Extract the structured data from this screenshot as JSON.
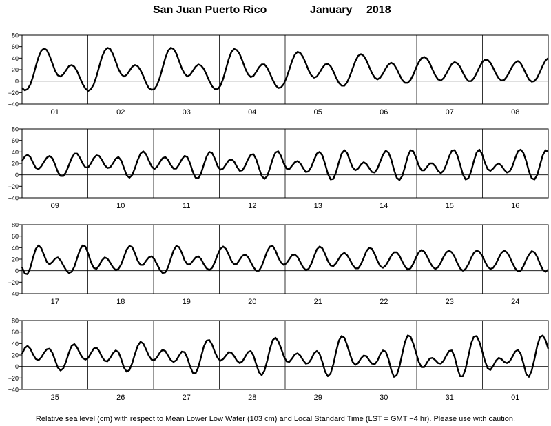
{
  "title": {
    "location": "San Juan Puerto Rico",
    "month": "January",
    "year": "2018"
  },
  "caption": "Relative sea level (cm) with respect to Mean Lower Low Water (103 cm) and Local Standard Time (LST = GMT −4 hr). Please use with caution.",
  "colors": {
    "curve": "#000000",
    "grid": "#000000",
    "background": "#ffffff"
  },
  "chart_data": {
    "type": "line",
    "ylim": [
      -40,
      80
    ],
    "yticks": [
      80,
      60,
      40,
      20,
      0,
      -20,
      -40
    ],
    "ytick_labels": [
      "80",
      "60",
      "40",
      "20",
      "0",
      "−20",
      "−40"
    ],
    "grid": "vertical lines at day boundaries and horizontal zero line",
    "samples_per_day": 24,
    "panels": [
      {
        "day_labels": [
          "01",
          "02",
          "03",
          "04",
          "05",
          "06",
          "07",
          "08"
        ],
        "values": [
          [
            -12,
            -16,
            -14,
            -6,
            8,
            26,
            42,
            53,
            57,
            54,
            44,
            31,
            18,
            10,
            8,
            12,
            19,
            26,
            28,
            25,
            17,
            6,
            -5,
            -13
          ],
          [
            -17,
            -14,
            -6,
            8,
            25,
            42,
            53,
            58,
            56,
            47,
            34,
            21,
            12,
            8,
            11,
            18,
            25,
            28,
            26,
            19,
            9,
            -3,
            -12,
            -15
          ],
          [
            -14,
            -7,
            6,
            23,
            40,
            53,
            58,
            56,
            48,
            35,
            22,
            13,
            8,
            11,
            18,
            25,
            29,
            27,
            21,
            11,
            0,
            -9,
            -14,
            -14
          ],
          [
            -8,
            4,
            21,
            38,
            51,
            56,
            54,
            47,
            35,
            22,
            12,
            7,
            9,
            16,
            24,
            29,
            29,
            23,
            13,
            2,
            -7,
            -12,
            -11,
            -5
          ],
          [
            6,
            20,
            35,
            46,
            51,
            49,
            42,
            31,
            19,
            10,
            6,
            8,
            15,
            23,
            29,
            30,
            26,
            17,
            6,
            -3,
            -8,
            -8,
            -2,
            9
          ],
          [
            22,
            35,
            44,
            47,
            44,
            36,
            25,
            14,
            6,
            3,
            6,
            13,
            22,
            29,
            32,
            29,
            21,
            11,
            2,
            -3,
            -3,
            2,
            11,
            23
          ],
          [
            33,
            40,
            42,
            39,
            31,
            20,
            10,
            3,
            1,
            5,
            13,
            22,
            30,
            33,
            31,
            25,
            15,
            6,
            0,
            0,
            5,
            14,
            24,
            33
          ],
          [
            37,
            37,
            32,
            23,
            13,
            5,
            1,
            2,
            8,
            17,
            26,
            32,
            35,
            31,
            22,
            12,
            3,
            -1,
            0,
            6,
            16,
            27,
            36,
            40
          ]
        ]
      },
      {
        "day_labels": [
          "09",
          "10",
          "11",
          "12",
          "13",
          "14",
          "15",
          "16"
        ],
        "values": [
          [
            24,
            32,
            35,
            31,
            21,
            12,
            10,
            15,
            23,
            30,
            33,
            29,
            18,
            5,
            -2,
            -2,
            5,
            17,
            29,
            37,
            37,
            30,
            20,
            13
          ],
          [
            13,
            20,
            29,
            34,
            33,
            26,
            17,
            12,
            13,
            20,
            28,
            31,
            25,
            12,
            -1,
            -5,
            0,
            12,
            26,
            37,
            41,
            36,
            25,
            15
          ],
          [
            10,
            14,
            22,
            29,
            31,
            26,
            17,
            11,
            11,
            18,
            27,
            33,
            31,
            20,
            5,
            -5,
            -6,
            3,
            18,
            32,
            40,
            38,
            28,
            15
          ],
          [
            9,
            11,
            18,
            25,
            27,
            23,
            14,
            7,
            8,
            16,
            27,
            35,
            36,
            27,
            12,
            -2,
            -7,
            -2,
            12,
            28,
            39,
            41,
            33,
            20
          ],
          [
            11,
            10,
            16,
            22,
            24,
            20,
            12,
            5,
            6,
            14,
            26,
            37,
            40,
            34,
            19,
            2,
            -8,
            -7,
            5,
            22,
            37,
            43,
            38,
            25
          ],
          [
            13,
            8,
            11,
            18,
            22,
            19,
            12,
            5,
            4,
            11,
            23,
            35,
            42,
            39,
            27,
            9,
            -5,
            -9,
            -2,
            14,
            32,
            43,
            41,
            30
          ],
          [
            16,
            8,
            8,
            14,
            20,
            20,
            15,
            7,
            3,
            7,
            18,
            32,
            42,
            43,
            34,
            18,
            1,
            -8,
            -6,
            6,
            24,
            39,
            44,
            36
          ],
          [
            21,
            10,
            7,
            11,
            17,
            20,
            16,
            9,
            4,
            6,
            15,
            29,
            41,
            44,
            38,
            24,
            6,
            -6,
            -8,
            0,
            17,
            34,
            43,
            40
          ]
        ]
      },
      {
        "day_labels": [
          "17",
          "18",
          "19",
          "20",
          "21",
          "22",
          "23",
          "24"
        ],
        "values": [
          [
            6,
            -5,
            -6,
            5,
            23,
            38,
            44,
            39,
            27,
            15,
            11,
            15,
            21,
            23,
            18,
            9,
            1,
            -4,
            -2,
            7,
            22,
            36,
            44,
            42
          ],
          [
            30,
            15,
            5,
            3,
            9,
            18,
            23,
            21,
            14,
            6,
            1,
            3,
            11,
            24,
            37,
            43,
            41,
            30,
            17,
            10,
            10,
            17,
            23,
            25
          ],
          [
            20,
            11,
            2,
            -4,
            -3,
            6,
            21,
            35,
            43,
            41,
            31,
            18,
            11,
            11,
            17,
            23,
            25,
            20,
            11,
            4,
            1,
            5,
            15,
            28
          ],
          [
            38,
            42,
            38,
            28,
            17,
            11,
            12,
            19,
            26,
            28,
            24,
            15,
            6,
            0,
            0,
            8,
            21,
            34,
            42,
            43,
            35,
            23,
            14,
            10
          ],
          [
            13,
            20,
            27,
            28,
            24,
            15,
            6,
            1,
            3,
            12,
            25,
            37,
            42,
            39,
            29,
            17,
            9,
            8,
            13,
            21,
            28,
            31,
            27,
            19
          ],
          [
            10,
            4,
            4,
            11,
            22,
            34,
            40,
            38,
            29,
            17,
            8,
            5,
            9,
            17,
            26,
            32,
            32,
            26,
            16,
            7,
            2,
            4,
            12,
            23
          ],
          [
            32,
            36,
            33,
            25,
            15,
            7,
            3,
            6,
            14,
            24,
            32,
            35,
            32,
            24,
            13,
            4,
            0,
            3,
            11,
            22,
            31,
            35,
            33,
            26
          ],
          [
            16,
            7,
            3,
            5,
            12,
            22,
            31,
            35,
            32,
            24,
            13,
            4,
            -1,
            0,
            8,
            19,
            28,
            34,
            32,
            24,
            12,
            2,
            -2,
            2
          ]
        ]
      },
      {
        "day_labels": [
          "25",
          "26",
          "27",
          "28",
          "29",
          "30",
          "31",
          "01"
        ],
        "values": [
          [
            22,
            32,
            36,
            31,
            21,
            13,
            11,
            16,
            24,
            30,
            31,
            24,
            11,
            -2,
            -7,
            -3,
            9,
            24,
            36,
            39,
            33,
            23,
            15,
            12
          ],
          [
            15,
            23,
            31,
            33,
            27,
            17,
            10,
            9,
            15,
            23,
            28,
            25,
            13,
            -2,
            -9,
            -6,
            6,
            22,
            36,
            43,
            40,
            30,
            19,
            12
          ],
          [
            11,
            16,
            24,
            29,
            27,
            19,
            11,
            8,
            11,
            19,
            26,
            25,
            15,
            0,
            -11,
            -12,
            -1,
            17,
            35,
            45,
            46,
            38,
            25,
            15
          ],
          [
            10,
            13,
            19,
            25,
            24,
            18,
            10,
            6,
            9,
            17,
            25,
            27,
            19,
            4,
            -10,
            -15,
            -7,
            10,
            31,
            46,
            50,
            44,
            32,
            18
          ],
          [
            9,
            8,
            14,
            21,
            23,
            19,
            11,
            5,
            6,
            13,
            23,
            27,
            22,
            8,
            -9,
            -17,
            -12,
            4,
            26,
            45,
            53,
            50,
            37,
            22
          ],
          [
            8,
            3,
            6,
            14,
            19,
            18,
            11,
            5,
            4,
            10,
            21,
            28,
            26,
            13,
            -6,
            -18,
            -15,
            0,
            22,
            43,
            54,
            52,
            40,
            24
          ],
          [
            8,
            -1,
            -1,
            7,
            14,
            15,
            11,
            6,
            5,
            10,
            19,
            27,
            28,
            17,
            -2,
            -17,
            -17,
            -4,
            18,
            40,
            52,
            53,
            43,
            27
          ],
          [
            10,
            -3,
            -6,
            1,
            10,
            15,
            13,
            8,
            6,
            9,
            17,
            26,
            29,
            22,
            5,
            -13,
            -18,
            -7,
            13,
            36,
            51,
            54,
            46,
            31
          ]
        ]
      }
    ]
  }
}
